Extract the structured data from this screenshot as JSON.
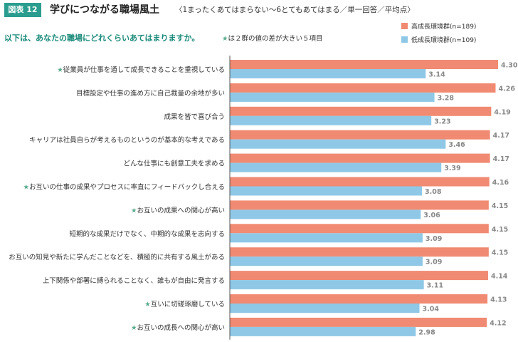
{
  "header": {
    "figure_label": "図表 12",
    "title": "学びにつながる職場風土",
    "subtitle": "〈1まったくあてはまらない〜6とてもあてはまる／単一回答／平均点〉",
    "question": "以下は、あなたの職場にどれくらいあてはまりますか。",
    "note_star": "★",
    "note_text": "は２群の値の差が大きい５項目"
  },
  "colors": {
    "high": "#f08a72",
    "low": "#8fc8e6",
    "star": "#5aab8c",
    "value_text": "#888888",
    "axis": "#555555"
  },
  "chart_data": {
    "type": "bar",
    "orientation": "horizontal",
    "xlim": [
      0,
      4.3
    ],
    "categories": [
      "従業員が仕事を通して成長できることを重視している",
      "目標設定や仕事の進め方に自己裁量の余地が多い",
      "成果を皆で喜び合う",
      "キャリアは社員自らが考えるものというのが基本的な考えである",
      "どんな仕事にも創意工夫を求める",
      "お互いの仕事の成果やプロセスに率直にフィードバックし合える",
      "お互いの成果への関心が高い",
      "短期的な成果だけでなく、中期的な成果を志向する",
      "お互いの知見や新たに学んだことなどを、積極的に共有する風土がある",
      "上下関係や部署に縛られることなく、誰もが自由に発言する",
      "互いに切磋琢磨している",
      "お互いの成長への関心が高い"
    ],
    "starred": [
      true,
      false,
      false,
      false,
      false,
      true,
      true,
      false,
      false,
      false,
      true,
      true
    ],
    "series": [
      {
        "name": "高成長環境群(n=189)",
        "values": [
          4.3,
          4.26,
          4.19,
          4.17,
          4.17,
          4.16,
          4.15,
          4.15,
          4.15,
          4.14,
          4.13,
          4.12
        ],
        "labels": [
          "4.30",
          "4.26",
          "4.19",
          "4.17",
          "4.17",
          "4.16",
          "4.15",
          "4.15",
          "4.15",
          "4.14",
          "4.13",
          "4.12"
        ]
      },
      {
        "name": "低成長環境群(n=109)",
        "values": [
          3.14,
          3.28,
          3.23,
          3.46,
          3.39,
          3.08,
          3.06,
          3.09,
          3.09,
          3.11,
          3.04,
          2.98
        ],
        "labels": [
          "3.14",
          "3.28",
          "3.23",
          "3.46",
          "3.39",
          "3.08",
          "3.06",
          "3.09",
          "3.09",
          "3.11",
          "3.04",
          "2.98"
        ]
      }
    ]
  }
}
